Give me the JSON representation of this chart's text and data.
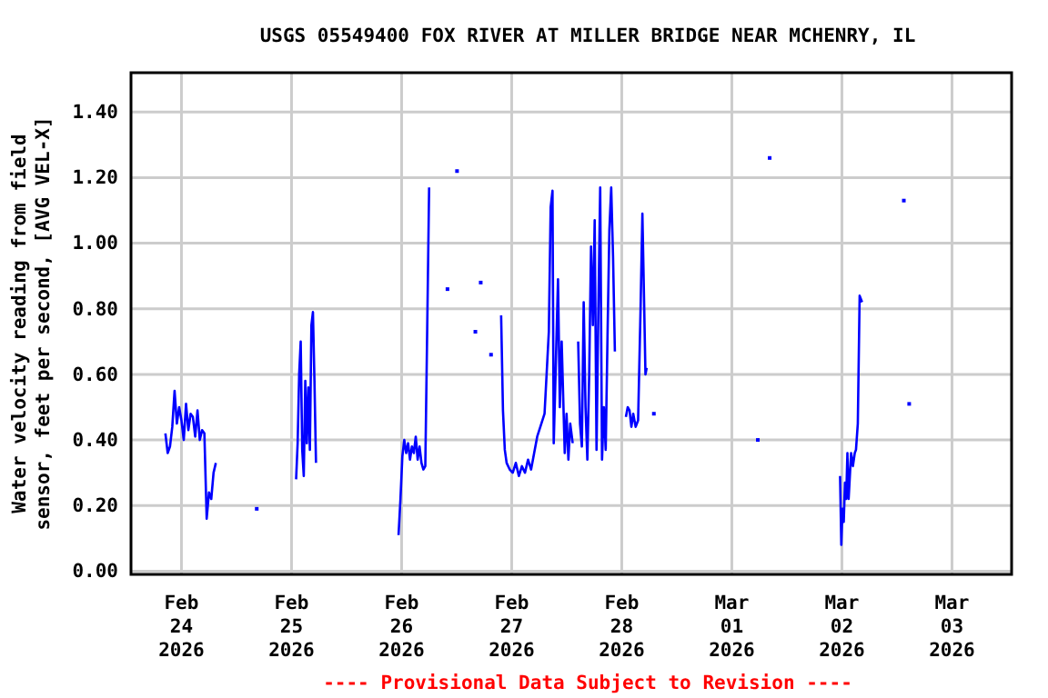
{
  "chart_data": {
    "type": "line",
    "title": "USGS 05549400 FOX RIVER AT MILLER BRIDGE NEAR MCHENRY, IL",
    "ylabel": "Water velocity reading from field sensor, feet per second, [AVG VEL-X]",
    "annotations": [
      "---- Provisional Data Subject to Revision ----"
    ],
    "xlim": [
      "2026-02-23T13:00",
      "2026-03-03T13:00"
    ],
    "xticks": [
      {
        "value": "2026-02-24",
        "label": "Feb 24 2026"
      },
      {
        "value": "2026-02-25",
        "label": "Feb 25 2026"
      },
      {
        "value": "2026-02-26",
        "label": "Feb 26 2026"
      },
      {
        "value": "2026-02-27",
        "label": "Feb 27 2026"
      },
      {
        "value": "2026-02-28",
        "label": "Feb 28 2026"
      },
      {
        "value": "2026-03-01",
        "label": "Mar 01 2026"
      },
      {
        "value": "2026-03-02",
        "label": "Mar 02 2026"
      },
      {
        "value": "2026-03-03",
        "label": "Mar 03 2026"
      }
    ],
    "ylim": [
      -0.01,
      1.52
    ],
    "yticks": [
      {
        "value": 0,
        "label": "0.00"
      },
      {
        "value": 0.2,
        "label": "0.20"
      },
      {
        "value": 0.4,
        "label": "0.40"
      },
      {
        "value": 0.6,
        "label": "0.60"
      },
      {
        "value": 0.8,
        "label": "0.80"
      },
      {
        "value": 1,
        "label": "1.00"
      },
      {
        "value": 1.2,
        "label": "1.20"
      },
      {
        "value": 1.4,
        "label": "1.40"
      }
    ],
    "grid": true,
    "line_style": "solid",
    "series": [
      {
        "color": "#0000ff",
        "x": [
          "2026-02-23T20:30",
          "2026-02-23T21:00",
          "2026-02-23T21:30",
          "2026-02-23T22:00",
          "2026-02-23T22:30",
          "2026-02-23T23:00",
          "2026-02-23T23:30",
          "2026-02-24T00:00",
          "2026-02-24T00:30",
          "2026-02-24T01:00",
          "2026-02-24T01:30",
          "2026-02-24T02:00",
          "2026-02-24T02:30",
          "2026-02-24T03:00",
          "2026-02-24T03:30",
          "2026-02-24T04:00",
          "2026-02-24T04:30",
          "2026-02-24T05:00",
          "2026-02-24T05:30",
          "2026-02-24T06:00",
          "2026-02-24T06:30",
          "2026-02-24T07:00",
          "2026-02-24T07:30",
          "2026-02-24T12:00",
          "2026-02-25T01:00",
          "2026-02-25T01:20",
          "2026-02-25T01:40",
          "2026-02-25T02:00",
          "2026-02-25T02:20",
          "2026-02-25T02:40",
          "2026-02-25T03:00",
          "2026-02-25T03:20",
          "2026-02-25T03:40",
          "2026-02-25T04:00",
          "2026-02-25T04:20",
          "2026-02-25T04:40",
          "2026-02-25T05:00",
          "2026-02-25T05:20",
          "2026-02-25T12:00",
          "2026-02-25T23:20",
          "2026-02-25T23:45",
          "2026-02-26T00:10",
          "2026-02-26T00:35",
          "2026-02-26T01:00",
          "2026-02-26T01:25",
          "2026-02-26T01:50",
          "2026-02-26T02:15",
          "2026-02-26T02:40",
          "2026-02-26T03:05",
          "2026-02-26T03:30",
          "2026-02-26T03:55",
          "2026-02-26T04:20",
          "2026-02-26T04:45",
          "2026-02-26T05:10",
          "2026-02-26T05:35",
          "2026-02-26T06:00",
          "2026-02-26T14:00",
          "2026-02-26T21:42",
          "2026-02-26T22:06",
          "2026-02-26T22:30",
          "2026-02-26T22:54",
          "2026-02-26T23:34",
          "2026-02-27T00:14",
          "2026-02-27T00:54",
          "2026-02-27T01:34",
          "2026-02-27T02:14",
          "2026-02-27T02:54",
          "2026-02-27T03:34",
          "2026-02-27T04:14",
          "2026-02-27T04:54",
          "2026-02-27T05:34",
          "2026-02-27T07:10",
          "2026-02-27T08:06",
          "2026-02-27T08:30",
          "2026-02-27T08:54",
          "2026-02-27T09:10",
          "2026-02-27T09:34",
          "2026-02-27T10:06",
          "2026-02-27T10:30",
          "2026-02-27T10:54",
          "2026-02-27T11:34",
          "2026-02-27T11:58",
          "2026-02-27T12:22",
          "2026-02-27T12:46",
          "2026-02-27T13:18",
          "2026-02-27T13:54",
          "2026-02-27T14:30",
          "2026-02-27T14:54",
          "2026-02-27T15:18",
          "2026-02-27T15:42",
          "2026-02-27T16:06",
          "2026-02-27T16:30",
          "2026-02-27T16:54",
          "2026-02-27T17:18",
          "2026-02-27T17:42",
          "2026-02-27T18:06",
          "2026-02-27T18:30",
          "2026-02-27T18:54",
          "2026-02-27T19:18",
          "2026-02-27T19:42",
          "2026-02-27T20:06",
          "2026-02-27T20:30",
          "2026-02-27T20:54",
          "2026-02-27T21:18",
          "2026-02-27T21:42",
          "2026-02-27T22:06",
          "2026-02-27T22:30",
          "2026-02-27T23:40",
          "2026-02-28T00:54",
          "2026-02-28T01:18",
          "2026-02-28T01:42",
          "2026-02-28T02:06",
          "2026-02-28T02:30",
          "2026-02-28T03:02",
          "2026-02-28T03:34",
          "2026-02-28T04:06",
          "2026-02-28T04:30",
          "2026-02-28T04:54",
          "2026-02-28T05:10",
          "2026-02-28T05:26",
          "2026-02-28T06:10",
          "2026-03-01T23:36",
          "2026-03-01T23:52",
          "2026-03-02T00:08",
          "2026-03-02T00:24",
          "2026-03-02T00:40",
          "2026-03-02T00:56",
          "2026-03-02T01:12",
          "2026-03-02T01:28",
          "2026-03-02T01:44",
          "2026-03-02T02:00",
          "2026-03-02T02:24",
          "2026-03-02T02:48",
          "2026-03-02T03:04",
          "2026-03-02T03:28",
          "2026-03-02T03:52",
          "2026-03-02T04:08",
          "2026-03-02T04:24"
        ],
        "values": [
          0.42,
          0.36,
          0.38,
          0.44,
          0.55,
          0.45,
          0.5,
          0.46,
          0.4,
          0.51,
          0.43,
          0.48,
          0.47,
          0.41,
          0.49,
          0.4,
          0.43,
          0.42,
          0.16,
          0.24,
          0.22,
          0.3,
          0.33,
          null,
          0.28,
          0.39,
          0.6,
          0.7,
          0.37,
          0.29,
          0.58,
          0.39,
          0.56,
          0.37,
          0.75,
          0.79,
          0.58,
          0.33,
          null,
          0.11,
          0.22,
          0.35,
          0.4,
          0.36,
          0.39,
          0.34,
          0.38,
          0.36,
          0.41,
          0.34,
          0.38,
          0.33,
          0.31,
          0.32,
          0.74,
          1.17,
          null,
          0.78,
          0.49,
          0.37,
          0.33,
          0.31,
          0.3,
          0.33,
          0.29,
          0.32,
          0.3,
          0.34,
          0.31,
          0.36,
          0.41,
          0.48,
          0.73,
          1.11,
          1.16,
          0.39,
          0.6,
          0.89,
          0.5,
          0.7,
          0.36,
          0.48,
          0.34,
          0.45,
          0.39,
          null,
          0.7,
          0.45,
          0.38,
          0.82,
          0.5,
          0.34,
          0.6,
          0.99,
          0.75,
          1.07,
          0.37,
          0.8,
          1.17,
          0.34,
          0.5,
          0.37,
          0.72,
          1.04,
          1.17,
          0.96,
          0.67,
          null,
          0.47,
          0.5,
          0.49,
          0.44,
          0.48,
          0.44,
          0.46,
          0.8,
          1.09,
          0.8,
          0.6,
          0.62,
          null,
          0.29,
          0.08,
          0.19,
          0.15,
          0.27,
          0.22,
          0.36,
          0.22,
          0.29,
          0.36,
          0.32,
          0.36,
          0.37,
          0.45,
          0.84,
          0.83,
          0.82
        ]
      },
      {
        "type": "scatter",
        "color": "#0000ff",
        "marker": "square",
        "x": [
          "2026-02-24T16:25",
          "2026-02-28T07:00",
          "2026-02-26T10:00",
          "2026-02-26T12:05",
          "2026-02-26T16:05",
          "2026-02-26T17:15",
          "2026-02-26T19:30",
          "2026-03-01T05:40",
          "2026-03-01T08:15",
          "2026-03-02T13:30",
          "2026-03-02T14:40"
        ],
        "values": [
          0.19,
          0.48,
          0.86,
          1.22,
          0.73,
          0.88,
          0.66,
          0.4,
          1.26,
          1.13,
          0.51
        ]
      }
    ]
  }
}
